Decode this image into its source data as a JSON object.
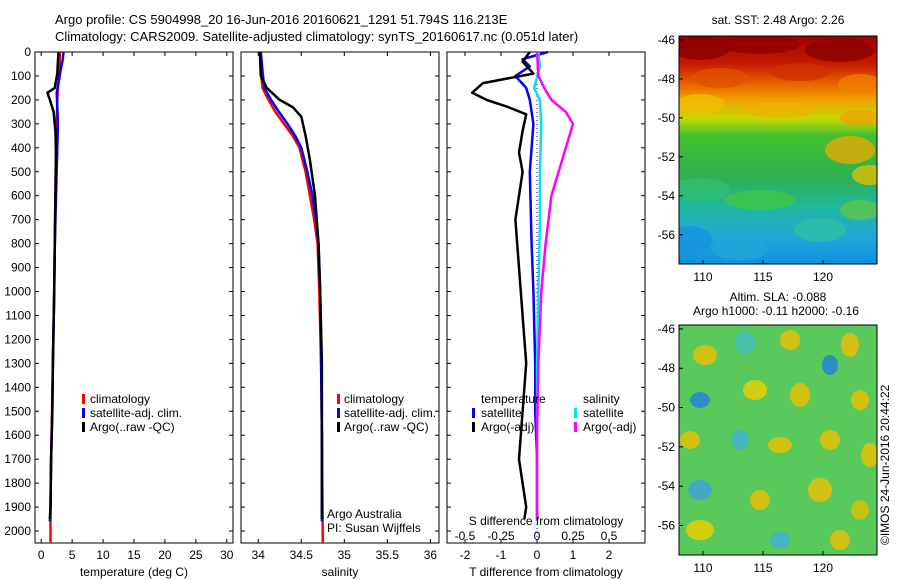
{
  "header": {
    "line1": "Argo profile: CS 5904998_20 16-Jun-2016 20160621_1291 51.794S 116.213E",
    "line2": "Climatology: CARS2009. Satellite-adjusted climatology: synTS_20160617.nc (0.051d later)"
  },
  "side_text": "©IMOS 24-Jun-2016 20:44:22",
  "colors": {
    "climatology": "#ff0000",
    "satellite": "#0000ff",
    "argo": "#000000",
    "sal_satellite": "#00e5e5",
    "sal_argo": "#ff00ff",
    "zero_line": "#0000ff"
  },
  "chart_data": [
    {
      "id": "temperature",
      "type": "line",
      "xlabel": "temperature (deg C)",
      "xlim": [
        -1,
        31
      ],
      "xticks": [
        0,
        5,
        10,
        15,
        20,
        25,
        30
      ],
      "ylim": [
        0,
        2050
      ],
      "yticks": [
        0,
        100,
        200,
        300,
        400,
        500,
        600,
        700,
        800,
        900,
        1000,
        1100,
        1200,
        1300,
        1400,
        1500,
        1600,
        1700,
        1800,
        1900,
        2000
      ],
      "legend": {
        "placement": "lower-center",
        "entries": [
          "climatology",
          "satellite-adj. clim.",
          "Argo(..raw -QC)"
        ]
      },
      "series": [
        {
          "name": "climatology",
          "color_key": "climatology",
          "points": [
            [
              3.0,
              0
            ],
            [
              3.0,
              50
            ],
            [
              2.9,
              100
            ],
            [
              2.7,
              150
            ],
            [
              2.6,
              200
            ],
            [
              2.5,
              300
            ],
            [
              2.4,
              400
            ],
            [
              2.3,
              600
            ],
            [
              2.2,
              800
            ],
            [
              2.1,
              1000
            ],
            [
              1.9,
              1300
            ],
            [
              1.8,
              1450
            ],
            [
              1.6,
              1700
            ],
            [
              1.5,
              1900
            ],
            [
              1.5,
              2050
            ]
          ]
        },
        {
          "name": "satellite-adj. clim.",
          "color_key": "satellite",
          "points": [
            [
              3.6,
              0
            ],
            [
              3.5,
              30
            ],
            [
              3.1,
              80
            ],
            [
              2.8,
              130
            ],
            [
              2.5,
              170
            ],
            [
              2.6,
              230
            ],
            [
              2.7,
              300
            ],
            [
              2.6,
              400
            ],
            [
              2.4,
              600
            ],
            [
              2.2,
              800
            ],
            [
              2.1,
              1000
            ],
            [
              1.9,
              1300
            ],
            [
              1.8,
              1500
            ],
            [
              1.6,
              1700
            ],
            [
              1.5,
              1900
            ],
            [
              1.4,
              1960
            ]
          ]
        },
        {
          "name": "Argo(..raw -QC)",
          "color_key": "argo",
          "points": [
            [
              2.8,
              0
            ],
            [
              2.7,
              40
            ],
            [
              2.6,
              90
            ],
            [
              2.2,
              150
            ],
            [
              1.0,
              170
            ],
            [
              1.4,
              200
            ],
            [
              2.0,
              250
            ],
            [
              2.3,
              330
            ],
            [
              2.4,
              420
            ],
            [
              2.3,
              600
            ],
            [
              2.2,
              800
            ],
            [
              2.1,
              1000
            ],
            [
              1.9,
              1300
            ],
            [
              1.8,
              1500
            ],
            [
              1.6,
              1700
            ],
            [
              1.5,
              1900
            ],
            [
              1.4,
              1950
            ]
          ]
        }
      ]
    },
    {
      "id": "salinity",
      "type": "line",
      "xlabel": "salinity",
      "xlim": [
        33.8,
        36.1
      ],
      "xticks": [
        34,
        34.5,
        35,
        35.5,
        36
      ],
      "ylim": [
        0,
        2050
      ],
      "legend": {
        "placement": "lower-center",
        "entries": [
          "climatology",
          "satellite-adj. clim.",
          "Argo(..raw -QC)"
        ]
      },
      "annotations": [
        "Argo Australia",
        "PI: Susan Wijffels"
      ],
      "series": [
        {
          "name": "climatology",
          "color_key": "climatology",
          "points": [
            [
              34.02,
              0
            ],
            [
              34.03,
              80
            ],
            [
              34.05,
              150
            ],
            [
              34.12,
              200
            ],
            [
              34.2,
              250
            ],
            [
              34.3,
              300
            ],
            [
              34.4,
              350
            ],
            [
              34.48,
              400
            ],
            [
              34.55,
              500
            ],
            [
              34.6,
              600
            ],
            [
              34.65,
              700
            ],
            [
              34.69,
              800
            ],
            [
              34.71,
              1000
            ],
            [
              34.73,
              1300
            ],
            [
              34.74,
              1600
            ],
            [
              34.75,
              2050
            ]
          ]
        },
        {
          "name": "satellite-adj. clim.",
          "color_key": "satellite",
          "points": [
            [
              34.03,
              0
            ],
            [
              34.05,
              80
            ],
            [
              34.07,
              150
            ],
            [
              34.15,
              200
            ],
            [
              34.24,
              250
            ],
            [
              34.34,
              300
            ],
            [
              34.43,
              350
            ],
            [
              34.5,
              400
            ],
            [
              34.57,
              500
            ],
            [
              34.63,
              600
            ],
            [
              34.67,
              700
            ],
            [
              34.7,
              800
            ],
            [
              34.72,
              1000
            ],
            [
              34.73,
              1300
            ],
            [
              34.74,
              1600
            ],
            [
              34.74,
              1960
            ]
          ]
        },
        {
          "name": "Argo(..raw -QC)",
          "color_key": "argo",
          "points": [
            [
              34.02,
              0
            ],
            [
              34.03,
              100
            ],
            [
              34.1,
              150
            ],
            [
              34.25,
              200
            ],
            [
              34.4,
              230
            ],
            [
              34.5,
              270
            ],
            [
              34.55,
              350
            ],
            [
              34.6,
              450
            ],
            [
              34.66,
              600
            ],
            [
              34.7,
              800
            ],
            [
              34.72,
              1000
            ],
            [
              34.74,
              1300
            ],
            [
              34.74,
              1600
            ],
            [
              34.74,
              1950
            ]
          ]
        }
      ]
    },
    {
      "id": "difference",
      "type": "line",
      "xlabel": "T difference from climatology",
      "xlim": [
        -2.5,
        3
      ],
      "xticks": [
        -2,
        -1,
        0,
        1,
        2
      ],
      "top_axis_label": "S difference from climatology",
      "top_xticks": [
        -0.5,
        -0.25,
        0,
        0.25,
        0.5
      ],
      "top_xticks_text": [
        "-0.5",
        "-0.25",
        "0",
        "0.25",
        "0.5"
      ],
      "ylim": [
        0,
        2050
      ],
      "legend": {
        "placement": "lower-center",
        "temperature_title": "temperature",
        "salinity_title": "salinity",
        "temperature_entries": [
          "satellite",
          "Argo(-adj)"
        ],
        "salinity_entries": [
          "satellite",
          "Argo(-adj)"
        ]
      },
      "series": [
        {
          "name": "temperature satellite",
          "color_key": "satellite",
          "points": [
            [
              0.3,
              0
            ],
            [
              -0.4,
              30
            ],
            [
              -0.2,
              60
            ],
            [
              -0.6,
              100
            ],
            [
              -0.3,
              150
            ],
            [
              -0.2,
              200
            ],
            [
              -0.1,
              300
            ],
            [
              -0.2,
              500
            ],
            [
              -0.15,
              800
            ],
            [
              -0.1,
              1000
            ],
            [
              -0.05,
              1300
            ],
            [
              -0.05,
              1500
            ],
            [
              0.0,
              1700
            ],
            [
              0.0,
              1950
            ]
          ]
        },
        {
          "name": "temperature Argo(-adj)",
          "color_key": "argo",
          "points": [
            [
              -0.2,
              0
            ],
            [
              -0.4,
              40
            ],
            [
              -0.1,
              90
            ],
            [
              -1.5,
              130
            ],
            [
              -1.8,
              170
            ],
            [
              -1.4,
              200
            ],
            [
              -0.8,
              230
            ],
            [
              -0.3,
              260
            ],
            [
              -0.4,
              330
            ],
            [
              -0.5,
              420
            ],
            [
              -0.4,
              500
            ],
            [
              -0.6,
              700
            ],
            [
              -0.5,
              900
            ],
            [
              -0.4,
              1100
            ],
            [
              -0.3,
              1300
            ],
            [
              -0.4,
              1500
            ],
            [
              -0.5,
              1700
            ],
            [
              -0.3,
              1900
            ],
            [
              -0.35,
              1950
            ]
          ]
        },
        {
          "name": "salinity satellite",
          "color_key": "sal_satellite",
          "points": [
            [
              0.01,
              0
            ],
            [
              0.02,
              60
            ],
            [
              -0.02,
              150
            ],
            [
              0.02,
              200
            ],
            [
              0.03,
              300
            ],
            [
              0.02,
              500
            ],
            [
              0.02,
              700
            ],
            [
              0.01,
              1000
            ],
            [
              0.0,
              1300
            ],
            [
              0.0,
              1600
            ],
            [
              0.0,
              1960
            ]
          ]
        },
        {
          "name": "salinity Argo(-adj)",
          "color_key": "sal_argo",
          "points": [
            [
              0.0,
              0
            ],
            [
              0.01,
              100
            ],
            [
              0.05,
              150
            ],
            [
              0.1,
              200
            ],
            [
              0.2,
              250
            ],
            [
              0.25,
              300
            ],
            [
              0.2,
              400
            ],
            [
              0.15,
              500
            ],
            [
              0.1,
              600
            ],
            [
              0.06,
              800
            ],
            [
              0.03,
              1000
            ],
            [
              0.01,
              1300
            ],
            [
              0.0,
              1600
            ],
            [
              0.0,
              1950
            ]
          ]
        }
      ]
    },
    {
      "id": "sst_map",
      "type": "heatmap",
      "title": "sat. SST: 2.48 Argo: 2.26",
      "xticks": [
        110,
        115,
        120
      ],
      "yticks": [
        -46,
        -48,
        -50,
        -52,
        -54,
        -56
      ],
      "xlim": [
        108,
        124.5
      ],
      "ylim": [
        -57.5,
        -45.8
      ]
    },
    {
      "id": "sla_map",
      "type": "heatmap",
      "title": "Altim. SLA: -0.088",
      "subtitle": "Argo h1000: -0.11 h2000: -0.16",
      "xticks": [
        110,
        115,
        120
      ],
      "yticks": [
        -46,
        -48,
        -50,
        -52,
        -54,
        -56
      ],
      "xlim": [
        108,
        124.5
      ],
      "ylim": [
        -57.5,
        -45.8
      ]
    }
  ]
}
